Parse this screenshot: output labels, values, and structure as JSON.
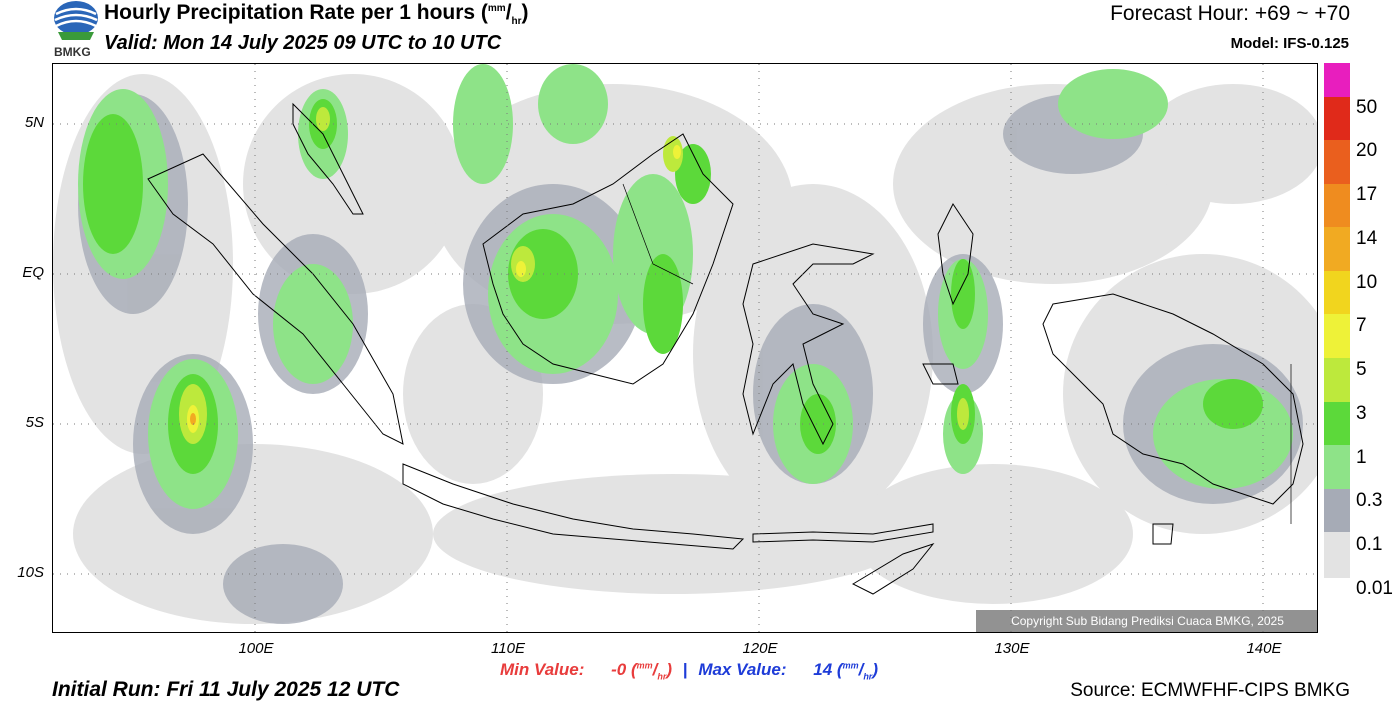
{
  "header": {
    "title_main": "Hourly Precipitation Rate per 1 hours (",
    "title_unit_num": "mm",
    "title_unit_sep": "/",
    "title_unit_den": "hr",
    "title_close": ")",
    "valid": "Valid: Mon 14 July 2025 09 UTC to 10 UTC",
    "forecast_hour": "Forecast Hour: +69 ~ +70",
    "model": "Model: IFS-0.125"
  },
  "logo": {
    "text": "BMKG",
    "icon": "bmkg-logo-icon"
  },
  "map": {
    "lat_labels": [
      "5N",
      "EQ",
      "5S",
      "10S"
    ],
    "lon_labels": [
      "100E",
      "110E",
      "120E",
      "130E",
      "140E"
    ],
    "copyright": "Copyright Sub Bidang Prediksi Cuaca BMKG, 2025"
  },
  "legend": {
    "labels": [
      "50",
      "20",
      "17",
      "14",
      "10",
      "7",
      "5",
      "3",
      "1",
      "0.3",
      "0.1",
      "0.01"
    ],
    "colors": [
      "#e81ebe",
      "#e02a1a",
      "#ea5f1e",
      "#ef8c1f",
      "#f1aa22",
      "#f1d51e",
      "#eef238",
      "#bde93c",
      "#5cd93a",
      "#8ee388",
      "#a6abb6",
      "#e3e3e3"
    ]
  },
  "stats": {
    "min_label": "Min Value:",
    "min_value": "-0",
    "max_label": "Max Value:",
    "max_value": "14",
    "unit_num": "mm",
    "unit_den": "hr",
    "separator": "|"
  },
  "footer": {
    "initial_run": "Initial Run: Fri 11 July 2025 12 UTC",
    "source": "Source: ECMWFHF-CIPS BMKG"
  }
}
